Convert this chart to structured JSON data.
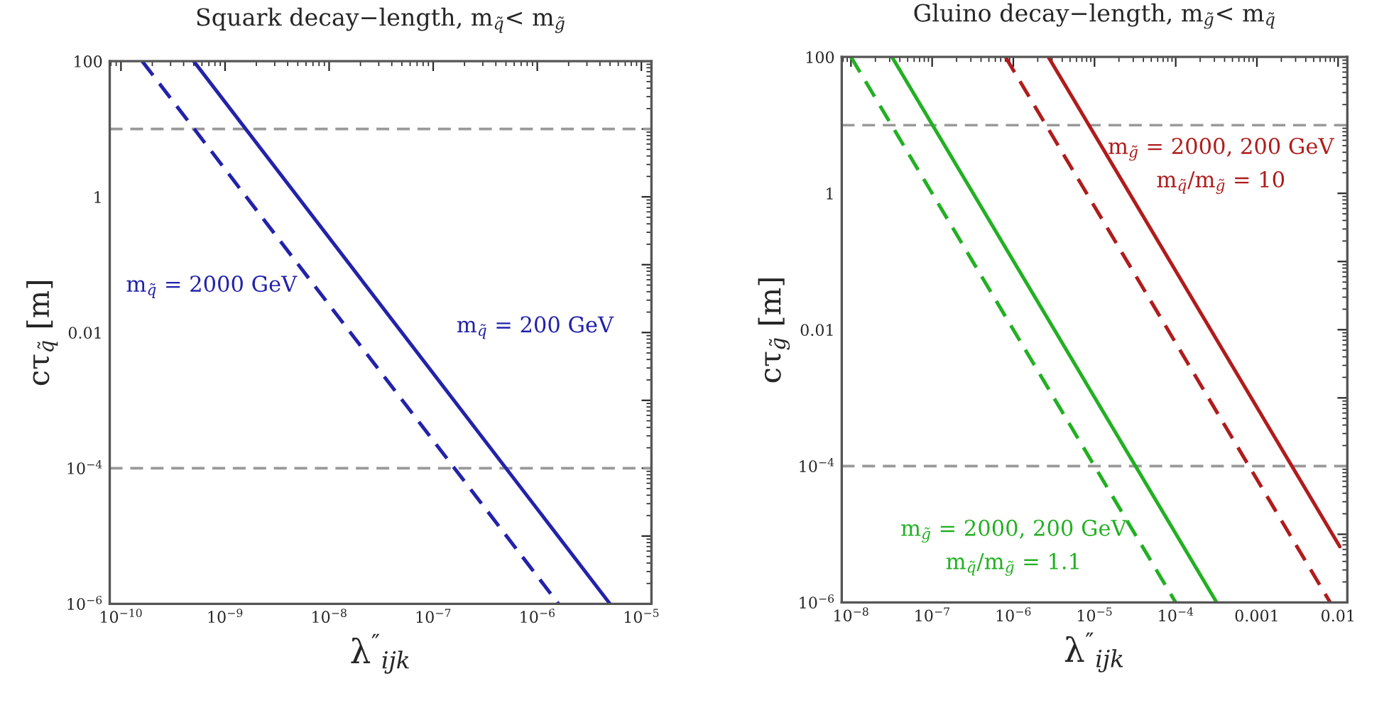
{
  "chart_data": [
    {
      "type": "line",
      "title": "Squark decay−length, m$_{q̃}$< m$_{g̃}$",
      "xlabel": "λ$^{″}$$_{ijk}$",
      "ylabel": "cτ$_{q̃}$ [m]",
      "log": "xy",
      "xlim": [
        7.8e-11,
        1.25e-05
      ],
      "ylim": [
        1e-06,
        100
      ],
      "xticks": [
        {
          "value": 1e-10,
          "label": "10$^{−10}$"
        },
        {
          "value": 1e-09,
          "label": "10$^{−9}$"
        },
        {
          "value": 1e-08,
          "label": "10$^{−8}$"
        },
        {
          "value": 1e-07,
          "label": "10$^{−7}$"
        },
        {
          "value": 1e-06,
          "label": "10$^{−6}$"
        },
        {
          "value": 1e-05,
          "label": "10$^{−5}$"
        }
      ],
      "yticks": [
        {
          "value": 1e-06,
          "label": "10$^{−6}$"
        },
        {
          "value": 1e-05,
          "label": null
        },
        {
          "value": 0.0001,
          "label": "10$^{−4}$"
        },
        {
          "value": 0.001,
          "label": null
        },
        {
          "value": 0.01,
          "label": "0.01"
        },
        {
          "value": 0.1,
          "label": null
        },
        1,
        {
          "value": 10,
          "label": null
        },
        100
      ],
      "ref_lines": [
        {
          "axis": "y",
          "value": 10,
          "color": "#999999",
          "line_style": "dashed"
        },
        {
          "axis": "y",
          "value": 0.0001,
          "color": "#999999",
          "line_style": "dashed"
        }
      ],
      "series": [
        {
          "name": "m$_{q̃}$ = 2000 GeV",
          "color": "#2222aa",
          "line_style": "dashed",
          "x": [
            1.6e-10,
            1.6e-06
          ],
          "values": [
            100,
            1e-06
          ]
        },
        {
          "name": "m$_{q̃}$ = 200 GeV",
          "color": "#2222aa",
          "line_style": "solid",
          "x": [
            5e-10,
            5e-06
          ],
          "values": [
            100,
            1e-06
          ]
        }
      ]
    },
    {
      "type": "line",
      "title": "Gluino decay−length, m$_{g̃}$< m$_{q̃}$",
      "xlabel": "λ$^{″}$$_{ijk}$",
      "ylabel": "cτ$_{g̃}$ [m]",
      "log": "xy",
      "xlim": [
        7.7e-09,
        0.013
      ],
      "ylim": [
        1e-06,
        100
      ],
      "xticks": [
        {
          "value": 1e-08,
          "label": "10$^{−8}$"
        },
        {
          "value": 1e-07,
          "label": "10$^{−7}$"
        },
        {
          "value": 1e-06,
          "label": "10$^{−6}$"
        },
        {
          "value": 1e-05,
          "label": "10$^{−5}$"
        },
        {
          "value": 0.0001,
          "label": "10$^{−4}$"
        },
        0.001,
        0.01
      ],
      "yticks": [
        {
          "value": 1e-06,
          "label": "10$^{−6}$"
        },
        {
          "value": 1e-05,
          "label": null
        },
        {
          "value": 0.0001,
          "label": "10$^{−4}$"
        },
        {
          "value": 0.001,
          "label": null
        },
        {
          "value": 0.01,
          "label": "0.01"
        },
        {
          "value": 0.1,
          "label": null
        },
        1,
        {
          "value": 10,
          "label": null
        },
        100
      ],
      "ref_lines": [
        {
          "axis": "y",
          "value": 10,
          "color": "#999999",
          "line_style": "dashed"
        },
        {
          "axis": "y",
          "value": 0.0001,
          "color": "#999999",
          "line_style": "dashed"
        }
      ],
      "annotations": [
        "m$_{g̃}$ = 2000, 200 GeV\nm$_{q̃}$/m$_{g̃}$ = 10",
        "m$_{g̃}$ = 2000, 200 GeV\nm$_{q̃}$/m$_{g̃}$ = 1.1"
      ],
      "series": [
        {
          "color": "#22b022",
          "line_style": "dashed",
          "x": [
            1e-08,
            0.0001
          ],
          "values": [
            100,
            1e-06
          ]
        },
        {
          "color": "#22b022",
          "line_style": "solid",
          "x": [
            3.2e-08,
            0.00032
          ],
          "values": [
            100,
            1e-06
          ]
        },
        {
          "color": "#b01c1c",
          "line_style": "dashed",
          "x": [
            8e-07,
            0.008
          ],
          "values": [
            100,
            1e-06
          ]
        },
        {
          "color": "#b01c1c",
          "line_style": "solid",
          "x": [
            2.7e-06,
            0.0105
          ],
          "values": [
            100,
            6.6e-06
          ]
        }
      ]
    }
  ]
}
